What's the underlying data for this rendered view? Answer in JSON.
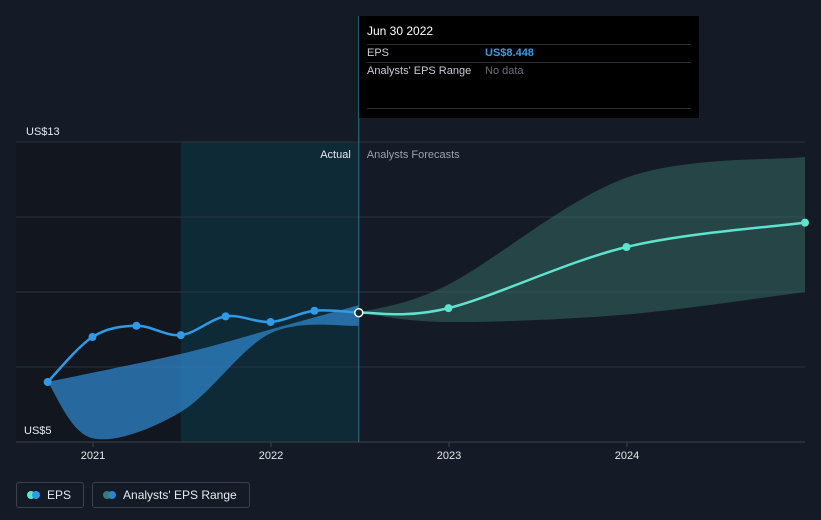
{
  "chart_data": {
    "type": "line",
    "y_axis": {
      "label_top": "US$13",
      "label_bottom": "US$5",
      "ylim": [
        5,
        13
      ]
    },
    "x_ticks": [
      "2021",
      "2022",
      "2023",
      "2024"
    ],
    "divider_labels": {
      "actual": "Actual",
      "forecast": "Analysts Forecasts"
    },
    "series": [
      {
        "name": "EPS",
        "color": "#2f9ae6",
        "points": [
          {
            "x": "2020-09-30",
            "y": 6.6
          },
          {
            "x": "2020-12-31",
            "y": 7.8
          },
          {
            "x": "2021-03-31",
            "y": 8.1
          },
          {
            "x": "2021-06-30",
            "y": 7.85
          },
          {
            "x": "2021-09-30",
            "y": 8.35
          },
          {
            "x": "2021-12-31",
            "y": 8.2
          },
          {
            "x": "2022-03-31",
            "y": 8.5
          },
          {
            "x": "2022-06-30",
            "y": 8.448
          }
        ]
      },
      {
        "name": "EPS forecast",
        "color": "#5fe3cf",
        "points": [
          {
            "x": "2022-06-30",
            "y": 8.448
          },
          {
            "x": "2022-12-31",
            "y": 8.57
          },
          {
            "x": "2023-12-31",
            "y": 10.2
          },
          {
            "x": "2024-12-31",
            "y": 10.85
          }
        ]
      }
    ],
    "ranges": [
      {
        "name": "Analysts' EPS Range (past)",
        "color": "#2f84c9",
        "upper": [
          {
            "x": "2020-09-30",
            "y": 6.6
          },
          {
            "x": "2021-06-30",
            "y": 7.35
          },
          {
            "x": "2021-12-31",
            "y": 8.0
          },
          {
            "x": "2022-06-30",
            "y": 8.65
          }
        ],
        "lower": [
          {
            "x": "2020-09-30",
            "y": 6.6
          },
          {
            "x": "2020-12-31",
            "y": 5.1
          },
          {
            "x": "2021-06-30",
            "y": 5.8
          },
          {
            "x": "2021-12-31",
            "y": 7.9
          },
          {
            "x": "2022-06-30",
            "y": 8.1
          }
        ]
      },
      {
        "name": "Analysts' EPS Range",
        "color": "#3a7a72",
        "upper": [
          {
            "x": "2022-06-30",
            "y": 8.448
          },
          {
            "x": "2022-12-31",
            "y": 9.2
          },
          {
            "x": "2023-12-31",
            "y": 12.05
          },
          {
            "x": "2024-12-31",
            "y": 12.6
          }
        ],
        "lower": [
          {
            "x": "2022-06-30",
            "y": 8.448
          },
          {
            "x": "2022-12-31",
            "y": 8.2
          },
          {
            "x": "2023-12-31",
            "y": 8.4
          },
          {
            "x": "2024-12-31",
            "y": 9.0
          }
        ]
      }
    ],
    "highlight": {
      "x": "2022-06-30",
      "y": 8.448
    },
    "tooltip": {
      "date": "Jun 30 2022",
      "rows": [
        {
          "key": "EPS",
          "value": "US$8.448"
        },
        {
          "key": "Analysts' EPS Range",
          "value": "No data"
        }
      ]
    },
    "legend": [
      {
        "label": "EPS",
        "colors": [
          "#5fe3cf",
          "#2f9ae6"
        ]
      },
      {
        "label": "Analysts' EPS Range",
        "colors": [
          "#3a7a72",
          "#2f84c9"
        ]
      }
    ],
    "grid": true
  }
}
